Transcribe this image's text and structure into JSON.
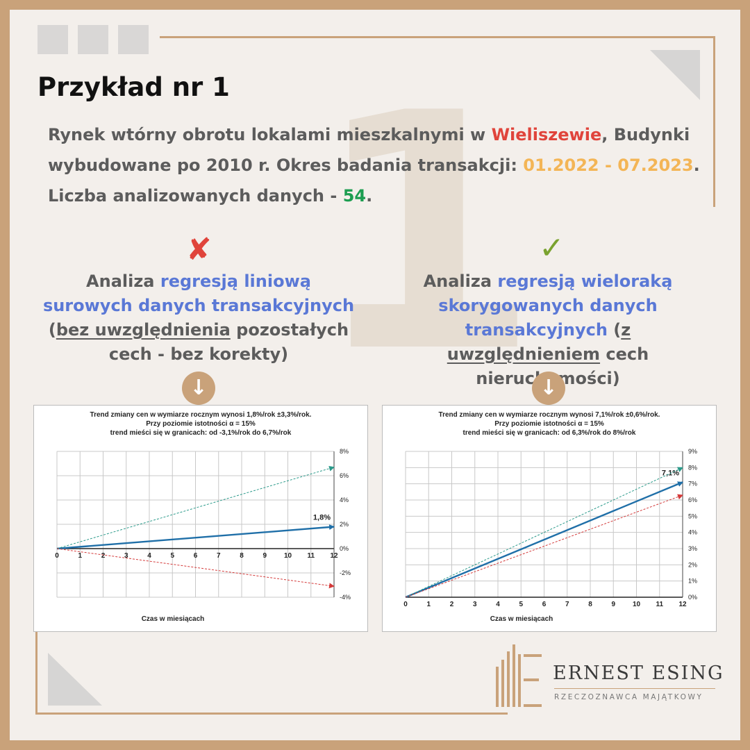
{
  "title": "Przykład nr 1",
  "big_number": "1",
  "intro": {
    "p1": "Rynek wtórny obrotu lokalami mieszkalnymi w ",
    "city": "Wieliszewie",
    "p2": ", Budynki wybudowane po 2010 r. Okres badania transakcji: ",
    "period": "01.2022 - 07.2023",
    "p3": ". Liczba analizowanych danych - ",
    "count": "54",
    "p4": "."
  },
  "left_panel": {
    "mark": "✘",
    "t1": "Analiza ",
    "t2": "regresją liniową surowych danych transakcyjnych",
    "t3": " (",
    "t4": "bez uwzględnienia",
    "t5": " pozostałych cech - bez korekty)",
    "arrow": "↓"
  },
  "right_panel": {
    "mark": "✓",
    "t1": "Analiza ",
    "t2": "regresją wieloraką skorygowanych danych transakcyjnych",
    "t3": " (",
    "t4": "z uwzględnieniem",
    "t5": " cech nieruchomości)",
    "arrow": "↓"
  },
  "chart_data": [
    {
      "type": "line",
      "title": [
        "Trend zmiany cen w wymiarze rocznym wynosi 1,8%/rok ±3,3%/rok.",
        "Przy poziomie istotności α = 15%",
        "trend mieści się w granicach: od -3,1%/rok do 6,7%/rok"
      ],
      "xlabel": "Czas w miesiącach",
      "ylabel": "",
      "xlim": [
        0,
        12
      ],
      "ylim": [
        -4,
        8
      ],
      "xticks": [
        "0",
        "1",
        "2",
        "3",
        "4",
        "5",
        "6",
        "7",
        "8",
        "9",
        "10",
        "11",
        "12"
      ],
      "yticks": [
        "-4%",
        "-2%",
        "0%",
        "2%",
        "4%",
        "6%",
        "8%"
      ],
      "ytick_values": [
        -4,
        -2,
        0,
        2,
        4,
        6,
        8
      ],
      "series": [
        {
          "role": "trend",
          "color": "#1f6fa8",
          "x": [
            0,
            12
          ],
          "y": [
            0,
            1.8
          ],
          "label": "1,8%"
        },
        {
          "role": "upper",
          "color": "#2a9a8a",
          "x": [
            0,
            12
          ],
          "y": [
            0,
            6.7
          ]
        },
        {
          "role": "lower",
          "color": "#d43a3a",
          "x": [
            0,
            12
          ],
          "y": [
            0,
            -3.1
          ]
        }
      ],
      "grid": true
    },
    {
      "type": "line",
      "title": [
        "Trend zmiany cen w wymiarze rocznym wynosi 7,1%/rok ±0,6%/rok.",
        "Przy poziomie istotności α = 15%",
        "trend mieści się w granicach: od 6,3%/rok do 8%/rok"
      ],
      "xlabel": "Czas w miesiącach",
      "ylabel": "",
      "xlim": [
        0,
        12
      ],
      "ylim": [
        0,
        9
      ],
      "xticks": [
        "0",
        "1",
        "2",
        "3",
        "4",
        "5",
        "6",
        "7",
        "8",
        "9",
        "10",
        "11",
        "12"
      ],
      "yticks": [
        "0%",
        "1%",
        "2%",
        "3%",
        "4%",
        "5%",
        "6%",
        "7%",
        "8%",
        "9%"
      ],
      "ytick_values": [
        0,
        1,
        2,
        3,
        4,
        5,
        6,
        7,
        8,
        9
      ],
      "series": [
        {
          "role": "trend",
          "color": "#1f6fa8",
          "x": [
            0,
            12
          ],
          "y": [
            0,
            7.1
          ],
          "label": "7,1%"
        },
        {
          "role": "upper",
          "color": "#2a9a8a",
          "x": [
            0,
            12
          ],
          "y": [
            0,
            8.0
          ]
        },
        {
          "role": "lower",
          "color": "#d43a3a",
          "x": [
            0,
            12
          ],
          "y": [
            0,
            6.3
          ]
        }
      ],
      "grid": true
    }
  ],
  "logo": {
    "name": "ERNEST ESING",
    "subtitle": "RZECZOZNAWCA MAJĄTKOWY"
  },
  "colors": {
    "accent": "#c9a27a",
    "blue": "#5a78d6",
    "red": "#e0443b",
    "gold": "#f3b556",
    "green": "#1c9d50"
  }
}
